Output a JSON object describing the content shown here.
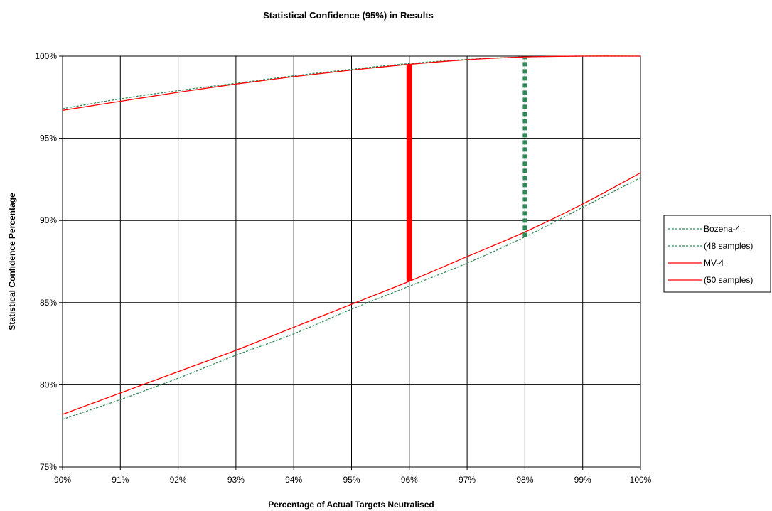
{
  "chart_data": {
    "type": "line",
    "title": "Statistical Confidence (95%) in Results",
    "xlabel": "Percentage of Actual Targets Neutralised",
    "ylabel": "Statistical Confidence Percentage",
    "xlim": [
      90,
      100
    ],
    "ylim": [
      75,
      100
    ],
    "x_ticks": [
      90,
      91,
      92,
      93,
      94,
      95,
      96,
      97,
      98,
      99,
      100
    ],
    "x_tick_labels": [
      "90%",
      "91%",
      "92%",
      "93%",
      "94%",
      "95%",
      "96%",
      "97%",
      "98%",
      "99%",
      "100%"
    ],
    "y_ticks": [
      75,
      80,
      85,
      90,
      95,
      100
    ],
    "y_tick_labels": [
      "75%",
      "80%",
      "85%",
      "90%",
      "95%",
      "100%"
    ],
    "grid": true,
    "legend_position": "right",
    "x": [
      90,
      91,
      92,
      93,
      94,
      95,
      96,
      97,
      98,
      99,
      100
    ],
    "series": [
      {
        "name": "Bozena-4",
        "color": "#2e8b57",
        "dash": "dotted",
        "values": [
          96.8,
          97.4,
          97.9,
          98.35,
          98.8,
          99.2,
          99.55,
          99.8,
          99.95,
          100,
          100
        ]
      },
      {
        "name": "(48 samples)",
        "color": "#2e8b57",
        "dash": "dotted",
        "values": [
          77.9,
          79.1,
          80.4,
          81.8,
          83.1,
          84.6,
          86.0,
          87.4,
          89.0,
          90.8,
          92.6
        ]
      },
      {
        "name": "MV-4",
        "color": "#ff0000",
        "dash": "solid",
        "values": [
          96.7,
          97.25,
          97.8,
          98.3,
          98.75,
          99.15,
          99.5,
          99.78,
          99.95,
          100,
          100
        ]
      },
      {
        "name": "(50 samples)",
        "color": "#ff0000",
        "dash": "solid",
        "values": [
          78.2,
          79.5,
          80.8,
          82.1,
          83.5,
          84.9,
          86.3,
          87.8,
          89.3,
          91.0,
          92.9
        ]
      }
    ],
    "interval_bars": [
      {
        "x": 96,
        "y_low": 86.3,
        "y_high": 99.5,
        "color": "#ff0000",
        "style": "solid"
      },
      {
        "x": 98,
        "y_low": 89.0,
        "y_high": 99.9,
        "color": "#2e8b57",
        "style": "dotted"
      }
    ]
  }
}
